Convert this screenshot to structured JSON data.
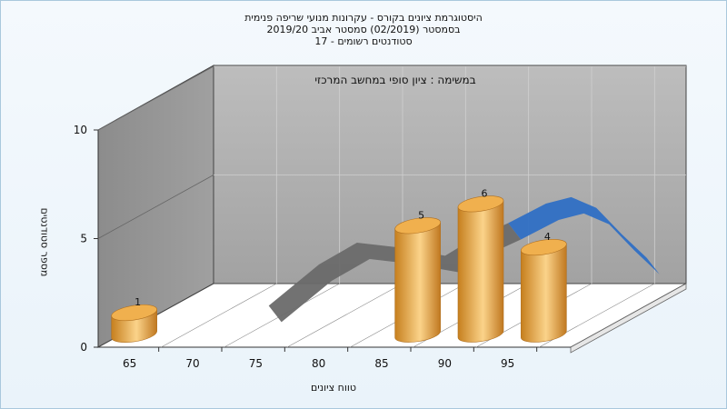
{
  "titles": {
    "line1": "היסטוגרמת ציונים בקורס - עקרונות מנועי שריפה פנימית",
    "line2": "בסמסטר  (02/2019)  סמסטר אביב 2019/20",
    "line3": "סטודנטים רשומים - 17"
  },
  "chart_data": {
    "type": "bar",
    "subtitle": "במשימה : ציון סופי במחשב המרכזי",
    "xlabel": "טווח ציונים",
    "ylabel": "מספר סטודנטים",
    "x_ticks": [
      "65",
      "70",
      "75",
      "80",
      "85",
      "90",
      "95"
    ],
    "y_ticks": [
      "0",
      "5",
      "10"
    ],
    "ylim": [
      0,
      10
    ],
    "xlim": [
      62.5,
      100
    ],
    "bars": [
      {
        "x": 65,
        "value": 1,
        "label": "1"
      },
      {
        "x": 87.5,
        "value": 5,
        "label": "5"
      },
      {
        "x": 92.5,
        "value": 6,
        "label": "6"
      },
      {
        "x": 97.5,
        "value": 4,
        "label": "4"
      }
    ],
    "curve": [
      {
        "x": 71,
        "y": 0.3
      },
      {
        "x": 75,
        "y": 2.2
      },
      {
        "x": 78,
        "y": 3.2
      },
      {
        "x": 81,
        "y": 3.0
      },
      {
        "x": 85,
        "y": 2.6
      },
      {
        "x": 87,
        "y": 3.3
      },
      {
        "x": 90,
        "y": 4.1
      },
      {
        "x": 93,
        "y": 5.0
      },
      {
        "x": 95,
        "y": 5.3
      },
      {
        "x": 97,
        "y": 4.8
      },
      {
        "x": 99,
        "y": 3.6
      },
      {
        "x": 101,
        "y": 2.5
      }
    ],
    "colors": {
      "bar": "#e8a84a",
      "curve_gray": "#6a6a6a",
      "curve_blue": "#2f6fc4",
      "wall": "#a9a9a9",
      "floor": "#ffffff"
    }
  }
}
